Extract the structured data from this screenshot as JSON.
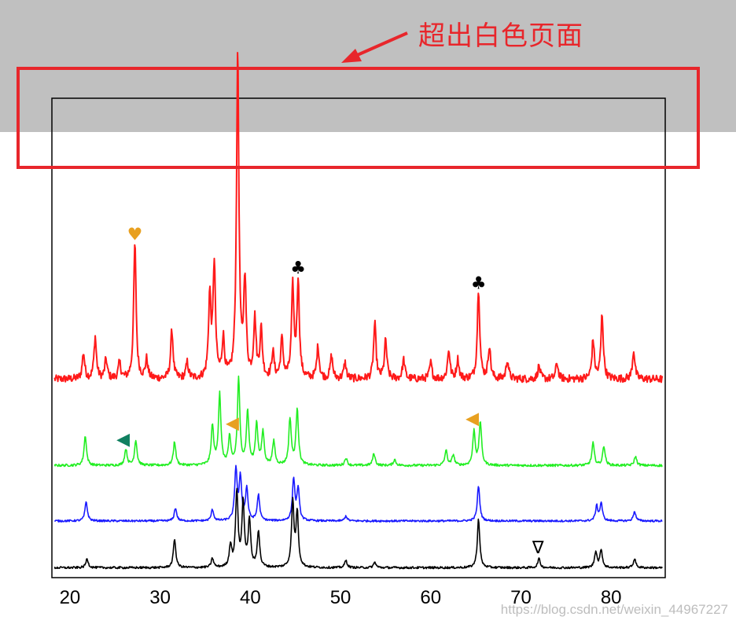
{
  "annotation": {
    "text": "超出白色页面",
    "color": "#e8262b"
  },
  "watermark": "https://blog.csdn.net/weixin_44967227",
  "colors": {
    "red": "#ff1a1a",
    "green": "#22ee22",
    "blue": "#1a1aff",
    "black": "#000000",
    "gray_band": "#c0c0c0",
    "highlight_box": "#e8262b",
    "orange_marker": "#e8a020",
    "teal_marker": "#108060"
  },
  "chart_data": {
    "type": "line",
    "title": "",
    "xlabel": "",
    "ylabel": "",
    "xlim": [
      18,
      86
    ],
    "x_ticks": [
      20,
      30,
      40,
      50,
      60,
      70,
      80
    ],
    "grid": false,
    "series": [
      {
        "color": "red",
        "baseline": 0.05,
        "noise": 0.012,
        "peaks": [
          [
            21.5,
            0.08
          ],
          [
            22.8,
            0.13
          ],
          [
            24.0,
            0.06
          ],
          [
            25.5,
            0.05
          ],
          [
            27.2,
            0.42
          ],
          [
            28.5,
            0.06
          ],
          [
            31.3,
            0.15
          ],
          [
            33.0,
            0.05
          ],
          [
            35.5,
            0.25
          ],
          [
            36.0,
            0.35
          ],
          [
            37.0,
            0.12
          ],
          [
            38.6,
            1.0
          ],
          [
            39.4,
            0.3
          ],
          [
            40.5,
            0.18
          ],
          [
            41.2,
            0.15
          ],
          [
            42.5,
            0.08
          ],
          [
            43.5,
            0.12
          ],
          [
            44.7,
            0.28
          ],
          [
            45.3,
            0.3
          ],
          [
            47.5,
            0.1
          ],
          [
            49.0,
            0.07
          ],
          [
            50.5,
            0.05
          ],
          [
            53.8,
            0.17
          ],
          [
            55.0,
            0.12
          ],
          [
            57.0,
            0.06
          ],
          [
            60.0,
            0.05
          ],
          [
            62.0,
            0.09
          ],
          [
            63.0,
            0.06
          ],
          [
            65.3,
            0.28
          ],
          [
            66.5,
            0.1
          ],
          [
            68.5,
            0.06
          ],
          [
            72.0,
            0.04
          ],
          [
            74.0,
            0.05
          ],
          [
            78.0,
            0.12
          ],
          [
            79.0,
            0.2
          ],
          [
            82.5,
            0.09
          ]
        ]
      },
      {
        "color": "green",
        "baseline": 0.03,
        "noise": 0.008,
        "peaks": [
          [
            21.7,
            0.2
          ],
          [
            26.2,
            0.11
          ],
          [
            27.3,
            0.17
          ],
          [
            31.6,
            0.16
          ],
          [
            35.8,
            0.26
          ],
          [
            36.6,
            0.48
          ],
          [
            37.7,
            0.18
          ],
          [
            38.7,
            0.58
          ],
          [
            39.7,
            0.36
          ],
          [
            40.7,
            0.28
          ],
          [
            41.4,
            0.22
          ],
          [
            42.6,
            0.16
          ],
          [
            44.4,
            0.31
          ],
          [
            45.2,
            0.38
          ],
          [
            50.6,
            0.05
          ],
          [
            53.7,
            0.08
          ],
          [
            56.0,
            0.04
          ],
          [
            61.7,
            0.1
          ],
          [
            62.5,
            0.07
          ],
          [
            64.8,
            0.23
          ],
          [
            65.5,
            0.29
          ],
          [
            78.0,
            0.15
          ],
          [
            79.2,
            0.13
          ],
          [
            82.7,
            0.06
          ]
        ]
      },
      {
        "color": "blue",
        "baseline": 0.02,
        "noise": 0.006,
        "peaks": [
          [
            21.8,
            0.12
          ],
          [
            31.7,
            0.08
          ],
          [
            35.8,
            0.07
          ],
          [
            38.4,
            0.32
          ],
          [
            38.9,
            0.26
          ],
          [
            39.6,
            0.2
          ],
          [
            40.9,
            0.16
          ],
          [
            44.8,
            0.26
          ],
          [
            45.3,
            0.2
          ],
          [
            50.6,
            0.03
          ],
          [
            65.3,
            0.22
          ],
          [
            78.4,
            0.09
          ],
          [
            78.9,
            0.11
          ],
          [
            82.6,
            0.06
          ]
        ]
      },
      {
        "color": "black",
        "baseline": 0.02,
        "noise": 0.006,
        "peaks": [
          [
            21.9,
            0.05
          ],
          [
            31.6,
            0.16
          ],
          [
            35.8,
            0.05
          ],
          [
            37.8,
            0.12
          ],
          [
            38.5,
            0.42
          ],
          [
            39.2,
            0.36
          ],
          [
            39.9,
            0.26
          ],
          [
            40.9,
            0.2
          ],
          [
            44.7,
            0.36
          ],
          [
            45.2,
            0.3
          ],
          [
            50.6,
            0.04
          ],
          [
            53.8,
            0.03
          ],
          [
            65.3,
            0.27
          ],
          [
            72.0,
            0.05
          ],
          [
            78.3,
            0.09
          ],
          [
            78.9,
            0.1
          ],
          [
            82.6,
            0.05
          ]
        ]
      }
    ],
    "symbols": [
      {
        "glyph": "♥",
        "x": 27.2,
        "series": 0,
        "color": "orange_marker"
      },
      {
        "glyph": "♣",
        "x": 45.3,
        "series": 0,
        "color": "black"
      },
      {
        "glyph": "♣",
        "x": 65.3,
        "series": 0,
        "color": "black"
      },
      {
        "glyph": "◀",
        "x": 25.9,
        "series": 1,
        "color": "teal_marker"
      },
      {
        "glyph": "◀",
        "x": 38.0,
        "series": 1,
        "color": "orange_marker"
      },
      {
        "glyph": "◀",
        "x": 64.6,
        "series": 1,
        "color": "orange_marker"
      },
      {
        "glyph": "∇",
        "x": 71.9,
        "series": 3,
        "color": "black"
      }
    ]
  }
}
